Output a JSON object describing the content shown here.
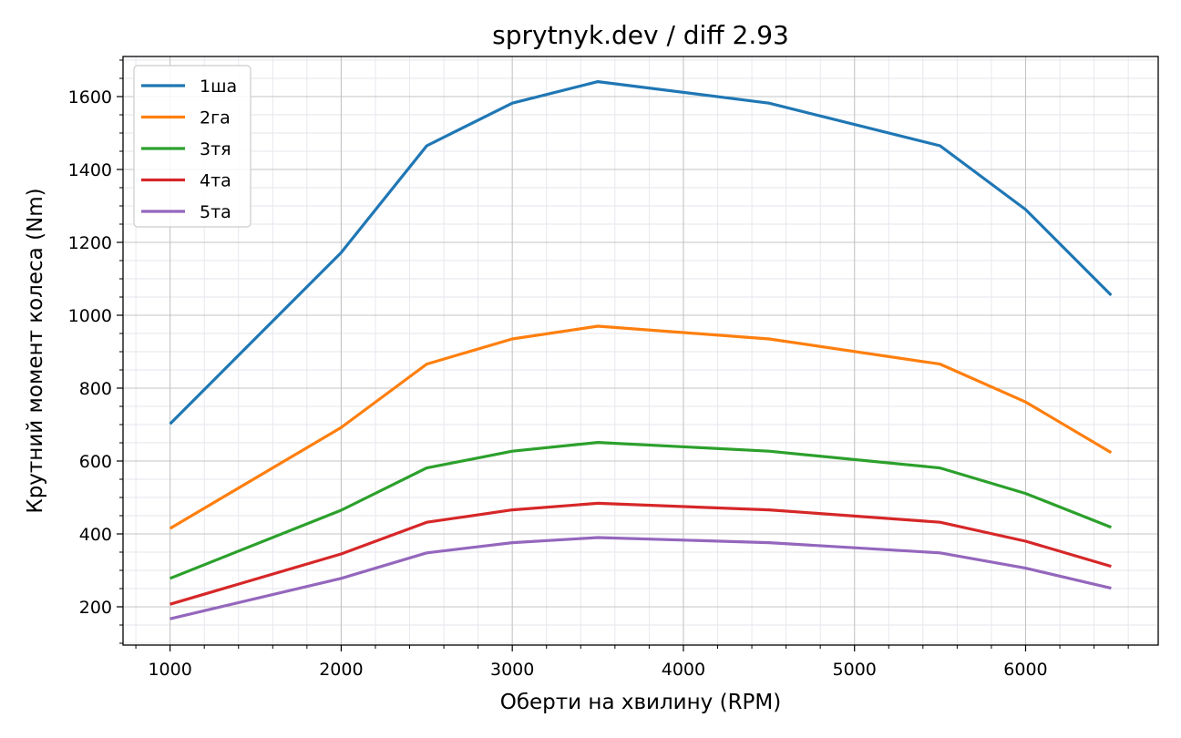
{
  "chart_data": {
    "type": "line",
    "title": "sprytnyk.dev / diff 2.93",
    "xlabel": "Оберти на хвилину (RPM)",
    "ylabel": "Крутний момент колеса (Nm)",
    "xlim": [
      725,
      6775
    ],
    "ylim": [
      95,
      1710
    ],
    "x_ticks": [
      1000,
      2000,
      3000,
      4000,
      5000,
      6000
    ],
    "y_ticks": [
      200,
      400,
      600,
      800,
      1000,
      1200,
      1400,
      1600
    ],
    "x_minor_step": 200,
    "y_minor_step": 50,
    "grid": true,
    "legend_position": "top-left",
    "x": [
      1000,
      2000,
      2500,
      3000,
      3500,
      4500,
      5500,
      6000,
      6500
    ],
    "series": [
      {
        "name": "1ша",
        "color": "#1f77b4",
        "values": [
          702,
          1172,
          1465,
          1582,
          1641,
          1582,
          1465,
          1290,
          1055
        ]
      },
      {
        "name": "2га",
        "color": "#ff7f0e",
        "values": [
          415,
          692,
          866,
          935,
          970,
          935,
          866,
          762,
          623
        ]
      },
      {
        "name": "3тя",
        "color": "#2ca02c",
        "values": [
          278,
          465,
          581,
          627,
          651,
          627,
          581,
          511,
          418
        ]
      },
      {
        "name": "4та",
        "color": "#d62728",
        "values": [
          207,
          345,
          432,
          466,
          484,
          466,
          432,
          380,
          311
        ]
      },
      {
        "name": "5та",
        "color": "#9467bd",
        "values": [
          167,
          278,
          348,
          376,
          390,
          376,
          348,
          306,
          251
        ]
      }
    ]
  }
}
